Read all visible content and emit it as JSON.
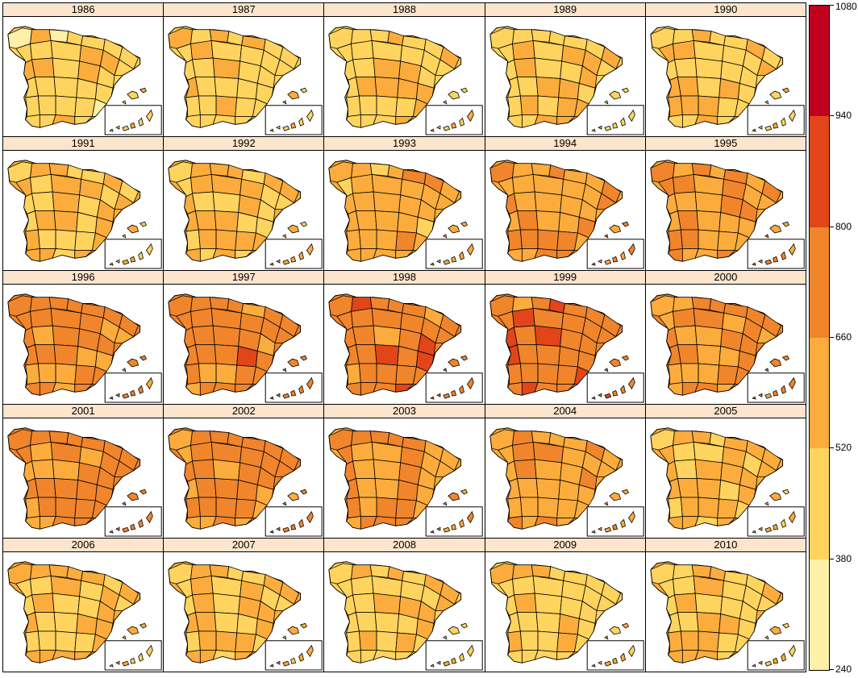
{
  "panels": [
    {
      "year": "1986",
      "level": 1.6
    },
    {
      "year": "1987",
      "level": 1.7
    },
    {
      "year": "1988",
      "level": 1.8
    },
    {
      "year": "1989",
      "level": 1.8
    },
    {
      "year": "1990",
      "level": 1.8
    },
    {
      "year": "1991",
      "level": 2.0
    },
    {
      "year": "1992",
      "level": 2.1
    },
    {
      "year": "1993",
      "level": 2.5
    },
    {
      "year": "1994",
      "level": 2.7
    },
    {
      "year": "1995",
      "level": 2.9
    },
    {
      "year": "1996",
      "level": 3.3
    },
    {
      "year": "1997",
      "level": 3.4
    },
    {
      "year": "1998",
      "level": 3.5
    },
    {
      "year": "1999",
      "level": 3.5
    },
    {
      "year": "2000",
      "level": 3.2
    },
    {
      "year": "2001",
      "level": 3.3
    },
    {
      "year": "2002",
      "level": 3.3
    },
    {
      "year": "2003",
      "level": 2.8
    },
    {
      "year": "2004",
      "level": 2.6
    },
    {
      "year": "2005",
      "level": 2.2
    },
    {
      "year": "2006",
      "level": 2.1
    },
    {
      "year": "2007",
      "level": 2.1
    },
    {
      "year": "2008",
      "level": 1.9
    },
    {
      "year": "2009",
      "level": 1.8
    },
    {
      "year": "2010",
      "level": 2.0
    }
  ],
  "legend": {
    "breaks": [
      "240",
      "380",
      "520",
      "660",
      "800",
      "940",
      "1080"
    ],
    "colors": [
      "#fff0a8",
      "#fed45e",
      "#fbac3c",
      "#f0852c",
      "#e2451a",
      "#c0001e"
    ]
  }
}
